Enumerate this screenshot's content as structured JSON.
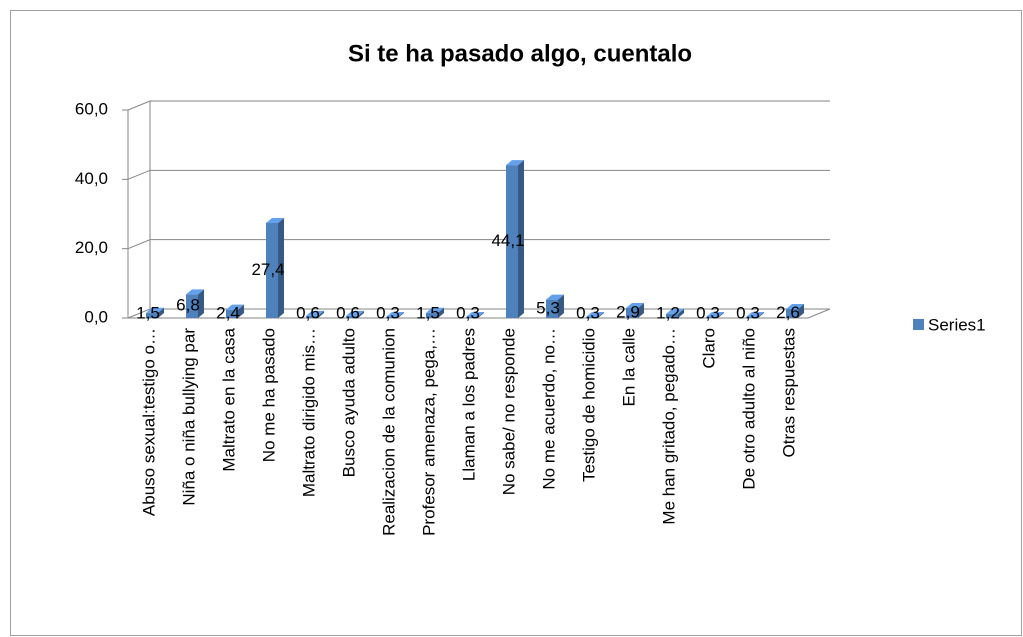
{
  "chart_data": {
    "type": "bar3d",
    "title": "Si te ha pasado algo, cuentalo",
    "categories": [
      "Abuso sexual:testigo o…",
      "Niña o niña bullying par",
      "Maltrato en la casa",
      "No me ha pasado",
      "Maltrato dirigido mis…",
      "Busco ayuda adulto",
      "Realizacion de la comunion",
      "Profesor amenaza, pega,…",
      "Llaman a los padres",
      "No sabe/ no responde",
      "No me acuerdo, no…",
      "Testigo de homicidio",
      "En la calle",
      "Me han gritado, pegado…",
      "Claro",
      "De otro adulto al niño",
      "Otras respuestas"
    ],
    "series": [
      {
        "name": "Series1",
        "color": "#4f81bd",
        "values": [
          1.5,
          6.8,
          2.4,
          27.4,
          0.6,
          0.6,
          0.3,
          1.5,
          0.3,
          44.1,
          5.3,
          0.3,
          2.9,
          1.2,
          0.3,
          0.3,
          2.6
        ],
        "value_labels": [
          "1,5",
          "6,8",
          "2,4",
          "27,4",
          "0,6",
          "0,6",
          "0,3",
          "1,5",
          "0,3",
          "44,1",
          "5,3",
          "0,3",
          "2,9",
          "1,2",
          "0,3",
          "0,3",
          "2,6"
        ]
      }
    ],
    "ylim": [
      0,
      60
    ],
    "yticks": [
      {
        "value": 0,
        "label": "0,0"
      },
      {
        "value": 20,
        "label": "20,0"
      },
      {
        "value": 40,
        "label": "40,0"
      },
      {
        "value": 60,
        "label": "60,0"
      }
    ],
    "grid": true,
    "legend": "right"
  }
}
